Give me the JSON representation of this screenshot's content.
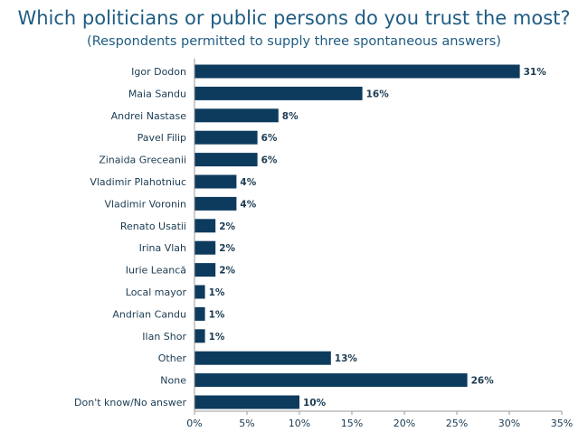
{
  "chart_data": {
    "type": "bar",
    "orientation": "horizontal",
    "title": "Which politicians or public persons do you trust the most?",
    "subtitle": "(Respondents permitted to supply three spontaneous answers)",
    "categories": [
      "Igor Dodon",
      "Maia Sandu",
      "Andrei Nastase",
      "Pavel Filip",
      "Zinaida Greceanii",
      "Vladimir Plahotniuc",
      "Vladimir Voronin",
      "Renato Usatii",
      "Irina Vlah",
      "Iurie Leancă",
      "Local mayor",
      "Andrian Candu",
      "Ilan Shor",
      "Other",
      "None",
      "Don't know/No answer"
    ],
    "values": [
      31,
      16,
      8,
      6,
      6,
      4,
      4,
      2,
      2,
      2,
      1,
      1,
      1,
      13,
      26,
      10
    ],
    "value_labels": [
      "31%",
      "16%",
      "8%",
      "6%",
      "6%",
      "4%",
      "4%",
      "2%",
      "2%",
      "2%",
      "1%",
      "1%",
      "1%",
      "13%",
      "26%",
      "10%"
    ],
    "xlim": [
      0,
      35
    ],
    "x_ticks": [
      0,
      5,
      10,
      15,
      20,
      25,
      30,
      35
    ],
    "x_tick_labels": [
      "0%",
      "5%",
      "10%",
      "15%",
      "20%",
      "25%",
      "30%",
      "35%"
    ],
    "xlabel": "",
    "ylabel": "",
    "grid": false,
    "bar_color": "#0d3b5e",
    "title_color": "#1f5c82"
  }
}
